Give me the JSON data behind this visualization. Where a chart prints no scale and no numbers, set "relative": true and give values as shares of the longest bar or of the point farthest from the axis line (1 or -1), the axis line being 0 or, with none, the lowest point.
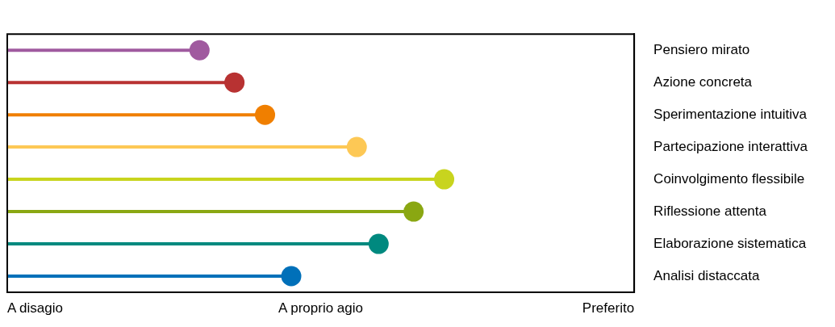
{
  "chart_data": {
    "type": "lollipop",
    "orientation": "horizontal",
    "marker": "circle",
    "grid": false,
    "legend": false,
    "relative": true,
    "categories": [
      "Pensiero mirato",
      "Azione concreta",
      "Sperimentazione intuitiva",
      "Partecipazione interattiva",
      "Coinvolgimento flessibile",
      "Riflessione attenta",
      "Elaborazione sistematica",
      "Analisi distaccata"
    ],
    "values": [
      0.44,
      0.52,
      0.59,
      0.8,
      1,
      0.93,
      0.85,
      0.65
    ],
    "colors": [
      "#a05a9f",
      "#b83232",
      "#f07f00",
      "#fdc855",
      "#c8d41e",
      "#8aa712",
      "#00897f",
      "#0070b9"
    ],
    "annotations": [
      "A disagio",
      "A proprio agio",
      "Preferito"
    ]
  }
}
